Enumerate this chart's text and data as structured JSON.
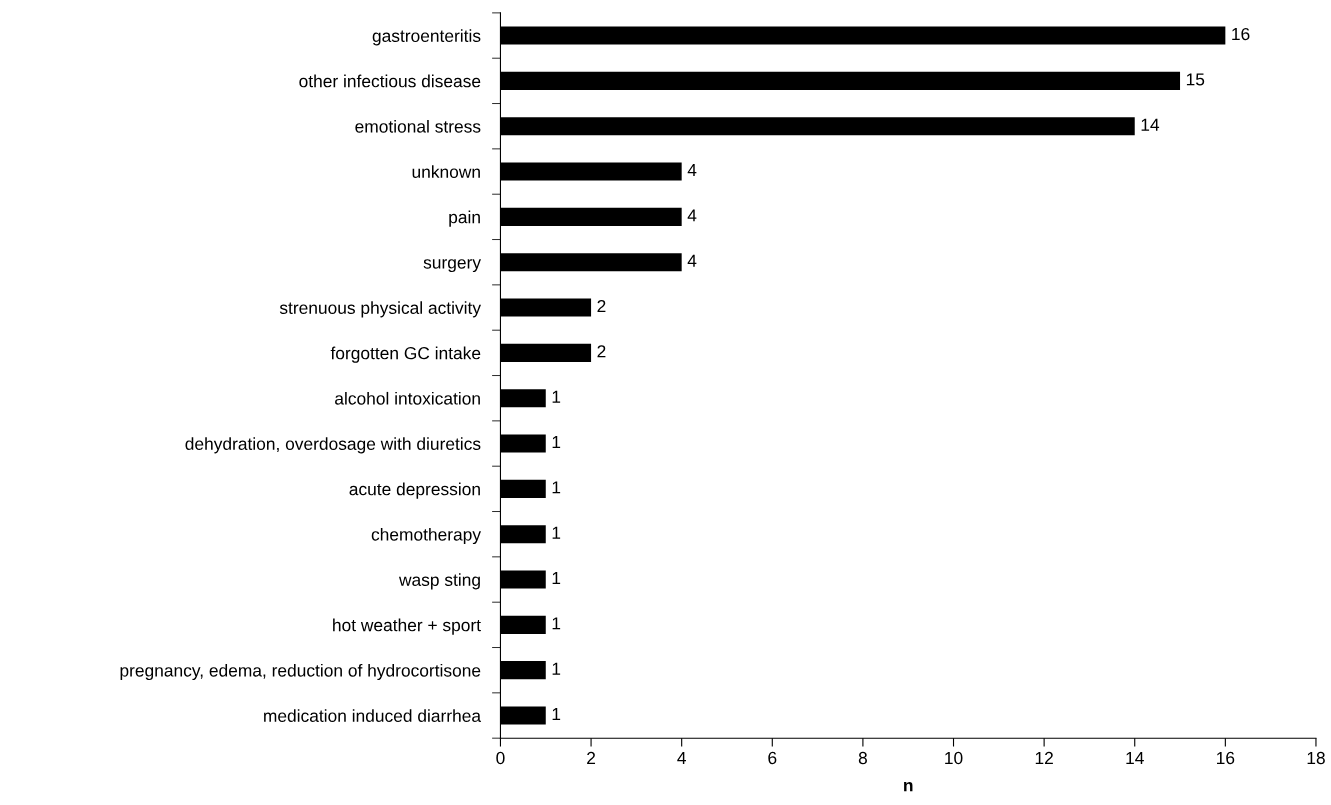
{
  "chart_data": {
    "type": "bar",
    "orientation": "horizontal",
    "xlabel": "n",
    "categories": [
      "gastroenteritis",
      "other infectious disease",
      "emotional stress",
      "unknown",
      "pain",
      "surgery",
      "strenuous physical activity",
      "forgotten GC intake",
      "alcohol intoxication",
      "dehydration, overdosage with diuretics",
      "acute depression",
      "chemotherapy",
      "wasp sting",
      "hot weather + sport",
      "pregnancy, edema, reduction of hydrocortisone",
      "medication induced diarrhea"
    ],
    "values": [
      16,
      15,
      14,
      4,
      4,
      4,
      2,
      2,
      1,
      1,
      1,
      1,
      1,
      1,
      1,
      1
    ],
    "color": "#000000",
    "xlim": [
      0,
      18
    ],
    "xticks": [
      0,
      2,
      4,
      6,
      8,
      10,
      12,
      14,
      16,
      18
    ],
    "data_labels": true,
    "grid": false,
    "legend": false
  }
}
